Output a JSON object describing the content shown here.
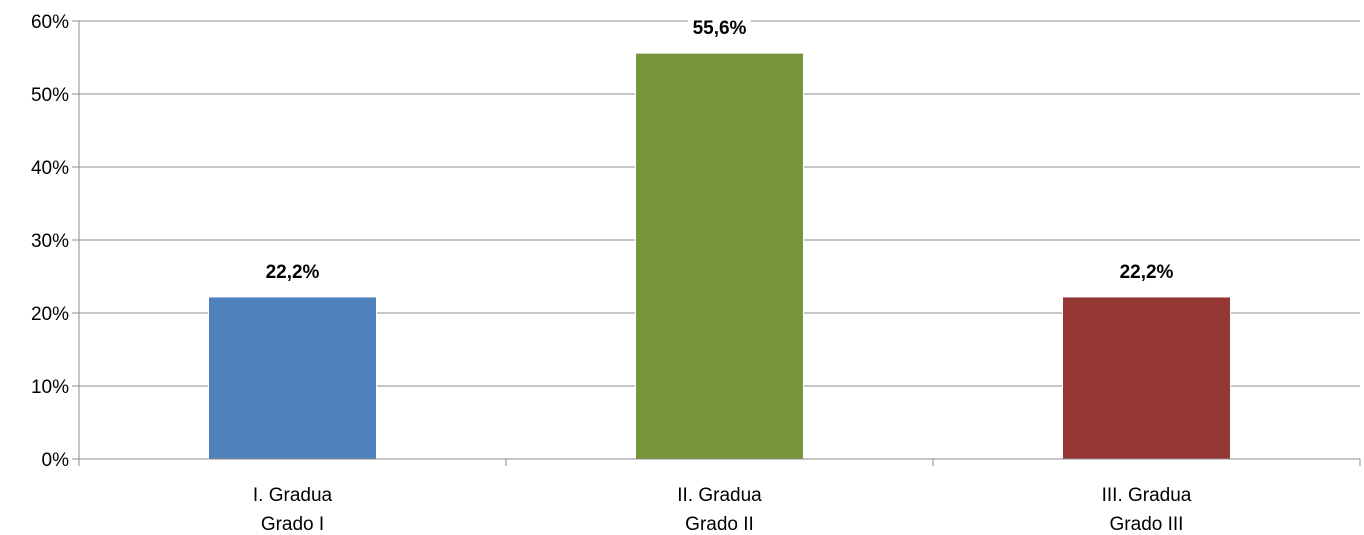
{
  "chart_data": {
    "type": "bar",
    "categories": [
      [
        "I. Gradua",
        "Grado I"
      ],
      [
        "II. Gradua",
        "Grado II"
      ],
      [
        "III. Gradua",
        "Grado III"
      ]
    ],
    "values": [
      22.2,
      55.6,
      22.2
    ],
    "data_labels": [
      "22,2%",
      "55,6%",
      "22,2%"
    ],
    "bar_colors": [
      "#4F81BD",
      "#77963C",
      "#953735"
    ],
    "ylim": [
      0,
      60
    ],
    "y_ticks": [
      0,
      10,
      20,
      30,
      40,
      50,
      60
    ],
    "y_tick_labels": [
      "0%",
      "10%",
      "20%",
      "30%",
      "40%",
      "50%",
      "60%"
    ],
    "grid": true,
    "legend": false,
    "title": "",
    "xlabel": "",
    "ylabel": ""
  }
}
